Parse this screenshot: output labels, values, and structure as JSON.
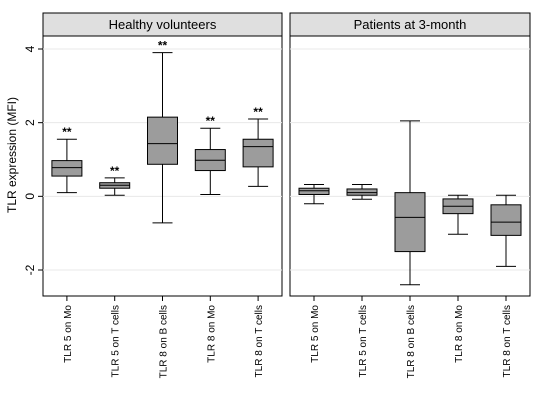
{
  "chart_data": {
    "type": "boxplot",
    "ylabel": "TLR expression (MFI)",
    "yticks": [
      -2,
      0,
      2,
      4
    ],
    "ylim": [
      -2.7,
      4.3
    ],
    "categories": [
      "TLR 5 on Mo",
      "TLR 5 on T cells",
      "TLR 8 on B cells",
      "TLR 8 on Mo",
      "TLR 8 on T cells"
    ],
    "fill_color": "#9c9c9c",
    "panel_header_color": "#dfdfdf",
    "panels": [
      {
        "title": "Healthy volunteers",
        "boxes": [
          {
            "category": "TLR 5 on Mo",
            "min": 0.1,
            "q1": 0.55,
            "median": 0.78,
            "q3": 0.97,
            "max": 1.55,
            "annotation": "**"
          },
          {
            "category": "TLR 5 on T cells",
            "min": 0.03,
            "q1": 0.22,
            "median": 0.3,
            "q3": 0.37,
            "max": 0.5,
            "annotation": "**"
          },
          {
            "category": "TLR 8 on B cells",
            "min": -0.72,
            "q1": 0.87,
            "median": 1.43,
            "q3": 2.15,
            "max": 3.9,
            "annotation": "**"
          },
          {
            "category": "TLR 8 on Mo",
            "min": 0.05,
            "q1": 0.7,
            "median": 0.98,
            "q3": 1.27,
            "max": 1.85,
            "annotation": "**"
          },
          {
            "category": "TLR 8 on T cells",
            "min": 0.27,
            "q1": 0.8,
            "median": 1.35,
            "q3": 1.55,
            "max": 2.1,
            "annotation": "**"
          }
        ]
      },
      {
        "title": "Patients at 3-month",
        "boxes": [
          {
            "category": "TLR 5 on Mo",
            "min": -0.2,
            "q1": 0.05,
            "median": 0.15,
            "q3": 0.22,
            "max": 0.32,
            "annotation": ""
          },
          {
            "category": "TLR 5 on T cells",
            "min": -0.08,
            "q1": 0.03,
            "median": 0.1,
            "q3": 0.2,
            "max": 0.32,
            "annotation": ""
          },
          {
            "category": "TLR 8 on B cells",
            "min": -2.4,
            "q1": -1.5,
            "median": -0.57,
            "q3": 0.1,
            "max": 2.05,
            "annotation": ""
          },
          {
            "category": "TLR 8 on Mo",
            "min": -1.03,
            "q1": -0.47,
            "median": -0.27,
            "q3": -0.07,
            "max": 0.03,
            "annotation": ""
          },
          {
            "category": "TLR 8 on T cells",
            "min": -1.9,
            "q1": -1.06,
            "median": -0.7,
            "q3": -0.23,
            "max": 0.03,
            "annotation": ""
          }
        ]
      }
    ]
  }
}
